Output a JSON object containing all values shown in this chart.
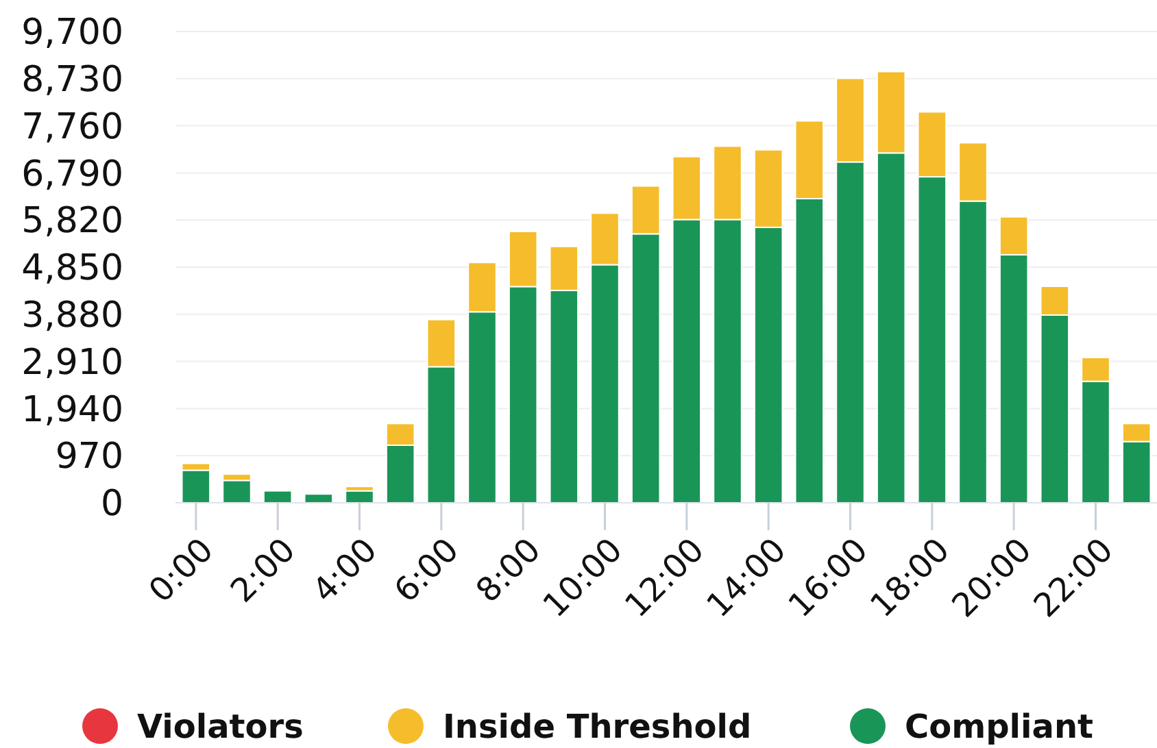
{
  "chart_data": {
    "type": "bar",
    "stacked": true,
    "categories": [
      "0:00",
      null,
      "2:00",
      null,
      "4:00",
      null,
      "6:00",
      null,
      "8:00",
      null,
      "10:00",
      null,
      "12:00",
      null,
      "14:00",
      null,
      "16:00",
      null,
      "18:00",
      null,
      "20:00",
      null,
      "22:00",
      null
    ],
    "series": [
      {
        "name": "Compliant",
        "color": "#1a9558",
        "values": [
          670,
          460,
          245,
          180,
          245,
          1185,
          2800,
          3930,
          4450,
          4370,
          4900,
          5535,
          5830,
          5830,
          5670,
          6260,
          7015,
          7200,
          6710,
          6210,
          5105,
          3865,
          2500,
          1260
        ]
      },
      {
        "name": "Inside Threshold",
        "color": "#f5bd2b",
        "values": [
          140,
          130,
          0,
          0,
          90,
          445,
          970,
          1015,
          1135,
          905,
          1060,
          985,
          1295,
          1510,
          1595,
          1600,
          1720,
          1675,
          1335,
          1200,
          780,
          590,
          490,
          370
        ]
      },
      {
        "name": "Violators",
        "color": "#e8363f",
        "values": [
          0,
          0,
          0,
          0,
          0,
          0,
          0,
          0,
          0,
          0,
          0,
          0,
          0,
          0,
          0,
          0,
          0,
          0,
          0,
          0,
          0,
          0,
          0,
          0
        ]
      }
    ],
    "ylim": [
      0,
      9700
    ],
    "yticks": [
      {
        "value": 0,
        "label": "0"
      },
      {
        "value": 970,
        "label": "970"
      },
      {
        "value": 1940,
        "label": "1,940"
      },
      {
        "value": 2910,
        "label": "2,910"
      },
      {
        "value": 3880,
        "label": "3,880"
      },
      {
        "value": 4850,
        "label": "4,850"
      },
      {
        "value": 5820,
        "label": "5,820"
      },
      {
        "value": 6790,
        "label": "6,790"
      },
      {
        "value": 7760,
        "label": "7,760"
      },
      {
        "value": 8730,
        "label": "8,730"
      },
      {
        "value": 9700,
        "label": "9,700"
      }
    ],
    "grid": "y",
    "legend": "bottom"
  }
}
